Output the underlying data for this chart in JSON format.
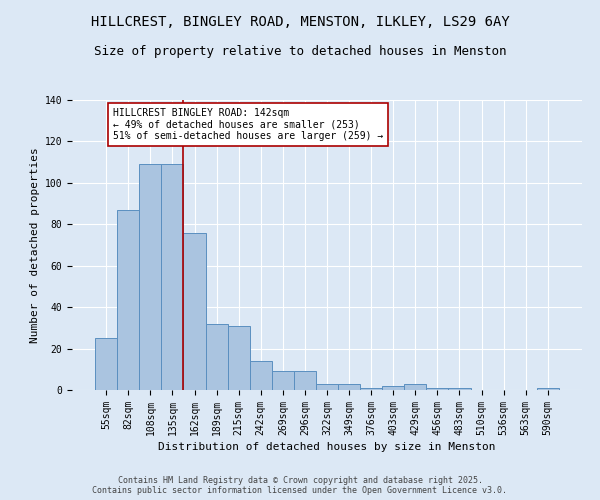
{
  "title": "HILLCREST, BINGLEY ROAD, MENSTON, ILKLEY, LS29 6AY",
  "subtitle": "Size of property relative to detached houses in Menston",
  "xlabel": "Distribution of detached houses by size in Menston",
  "ylabel": "Number of detached properties",
  "categories": [
    "55sqm",
    "82sqm",
    "108sqm",
    "135sqm",
    "162sqm",
    "189sqm",
    "215sqm",
    "242sqm",
    "269sqm",
    "296sqm",
    "322sqm",
    "349sqm",
    "376sqm",
    "403sqm",
    "429sqm",
    "456sqm",
    "483sqm",
    "510sqm",
    "536sqm",
    "563sqm",
    "590sqm"
  ],
  "values": [
    25,
    87,
    109,
    109,
    76,
    32,
    31,
    14,
    9,
    9,
    3,
    3,
    1,
    2,
    3,
    1,
    1,
    0,
    0,
    0,
    1
  ],
  "bar_color": "#aac4e0",
  "bar_edge_color": "#5a8fc0",
  "ref_line_x": 3.5,
  "ref_line_color": "#aa0000",
  "annotation_text": "HILLCREST BINGLEY ROAD: 142sqm\n← 49% of detached houses are smaller (253)\n51% of semi-detached houses are larger (259) →",
  "annotation_box_color": "#ffffff",
  "annotation_box_edge_color": "#aa0000",
  "ylim": [
    0,
    140
  ],
  "yticks": [
    0,
    20,
    40,
    60,
    80,
    100,
    120,
    140
  ],
  "background_color": "#dce8f5",
  "footer": "Contains HM Land Registry data © Crown copyright and database right 2025.\nContains public sector information licensed under the Open Government Licence v3.0.",
  "title_fontsize": 10,
  "subtitle_fontsize": 9,
  "axis_fontsize": 8,
  "tick_fontsize": 7,
  "footer_fontsize": 6
}
